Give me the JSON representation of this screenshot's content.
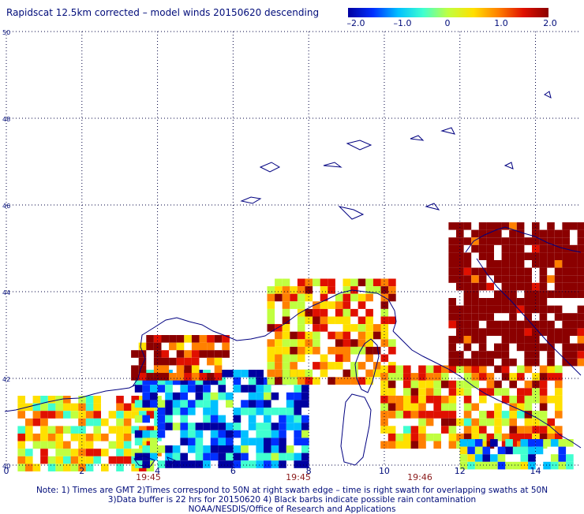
{
  "title": "Rapidscat 12.5km corrected – model winds 20150620 descending",
  "colorbar": {
    "ticks": [
      "–2.0",
      "–1.0",
      "0",
      "1.0",
      "2.0"
    ],
    "tick_values": [
      -2.0,
      -1.0,
      0,
      1.0,
      2.0
    ],
    "range": [
      -2.0,
      2.0
    ],
    "colors": [
      "#0000a0",
      "#0030ff",
      "#00c0ff",
      "#40ffd0",
      "#c0ff40",
      "#ffe000",
      "#ff8000",
      "#e01000",
      "#8b0000"
    ]
  },
  "axes": {
    "x_ticks": [
      "0",
      "2",
      "4",
      "6",
      "8",
      "10",
      "12",
      "14"
    ],
    "x_values": [
      0,
      2,
      4,
      6,
      8,
      10,
      12,
      14
    ],
    "y_ticks": [
      "40",
      "42",
      "44",
      "46",
      "48",
      "50"
    ],
    "y_values": [
      40,
      42,
      44,
      46,
      48,
      50
    ],
    "x_range": [
      0,
      15.2
    ],
    "y_range": [
      40,
      50
    ],
    "grid": "dotted"
  },
  "time_labels": [
    {
      "text": "19:45",
      "lon": 3.7
    },
    {
      "text": "19:45",
      "lon": 7.7
    },
    {
      "text": "19:46",
      "lon": 10.8
    }
  ],
  "notes": [
    "Note: 1) Times are GMT 2)Times correspond to 50N at right swath edge – time is right swath for overlapping swaths at 50N",
    "3)Data buffer is 22 hrs for 20150620 4) Black barbs indicate possible rain contamination",
    "NOAA/NESDIS/Office of Research and Applications"
  ],
  "colors": {
    "text": "#000c7a",
    "coast": "#000080",
    "grid": "#000040",
    "time": "#8b1a1a"
  },
  "chart_data": {
    "type": "heatmap",
    "title": "Rapidscat 12.5km corrected – model winds 20150620 descending",
    "value_range": [
      -2.0,
      2.0
    ],
    "regions": [
      {
        "lon": [
          0.3,
          4.0
        ],
        "lat": [
          40.0,
          41.6
        ],
        "value": 0.5
      },
      {
        "lon": [
          3.4,
          7.9
        ],
        "lat": [
          40.0,
          42.2
        ],
        "value": -1.2
      },
      {
        "lon": [
          3.3,
          5.8
        ],
        "lat": [
          42.1,
          43.0
        ],
        "value": 1.6
      },
      {
        "lon": [
          6.9,
          10.2
        ],
        "lat": [
          42.0,
          44.3
        ],
        "value": 0.9
      },
      {
        "lon": [
          9.9,
          14.6
        ],
        "lat": [
          40.5,
          42.3
        ],
        "value": 0.8
      },
      {
        "lon": [
          11.7,
          15.2
        ],
        "lat": [
          42.3,
          45.6
        ],
        "value": 2.0
      },
      {
        "lon": [
          12.0,
          15.0
        ],
        "lat": [
          40.0,
          40.6
        ],
        "value": -0.8
      }
    ]
  }
}
